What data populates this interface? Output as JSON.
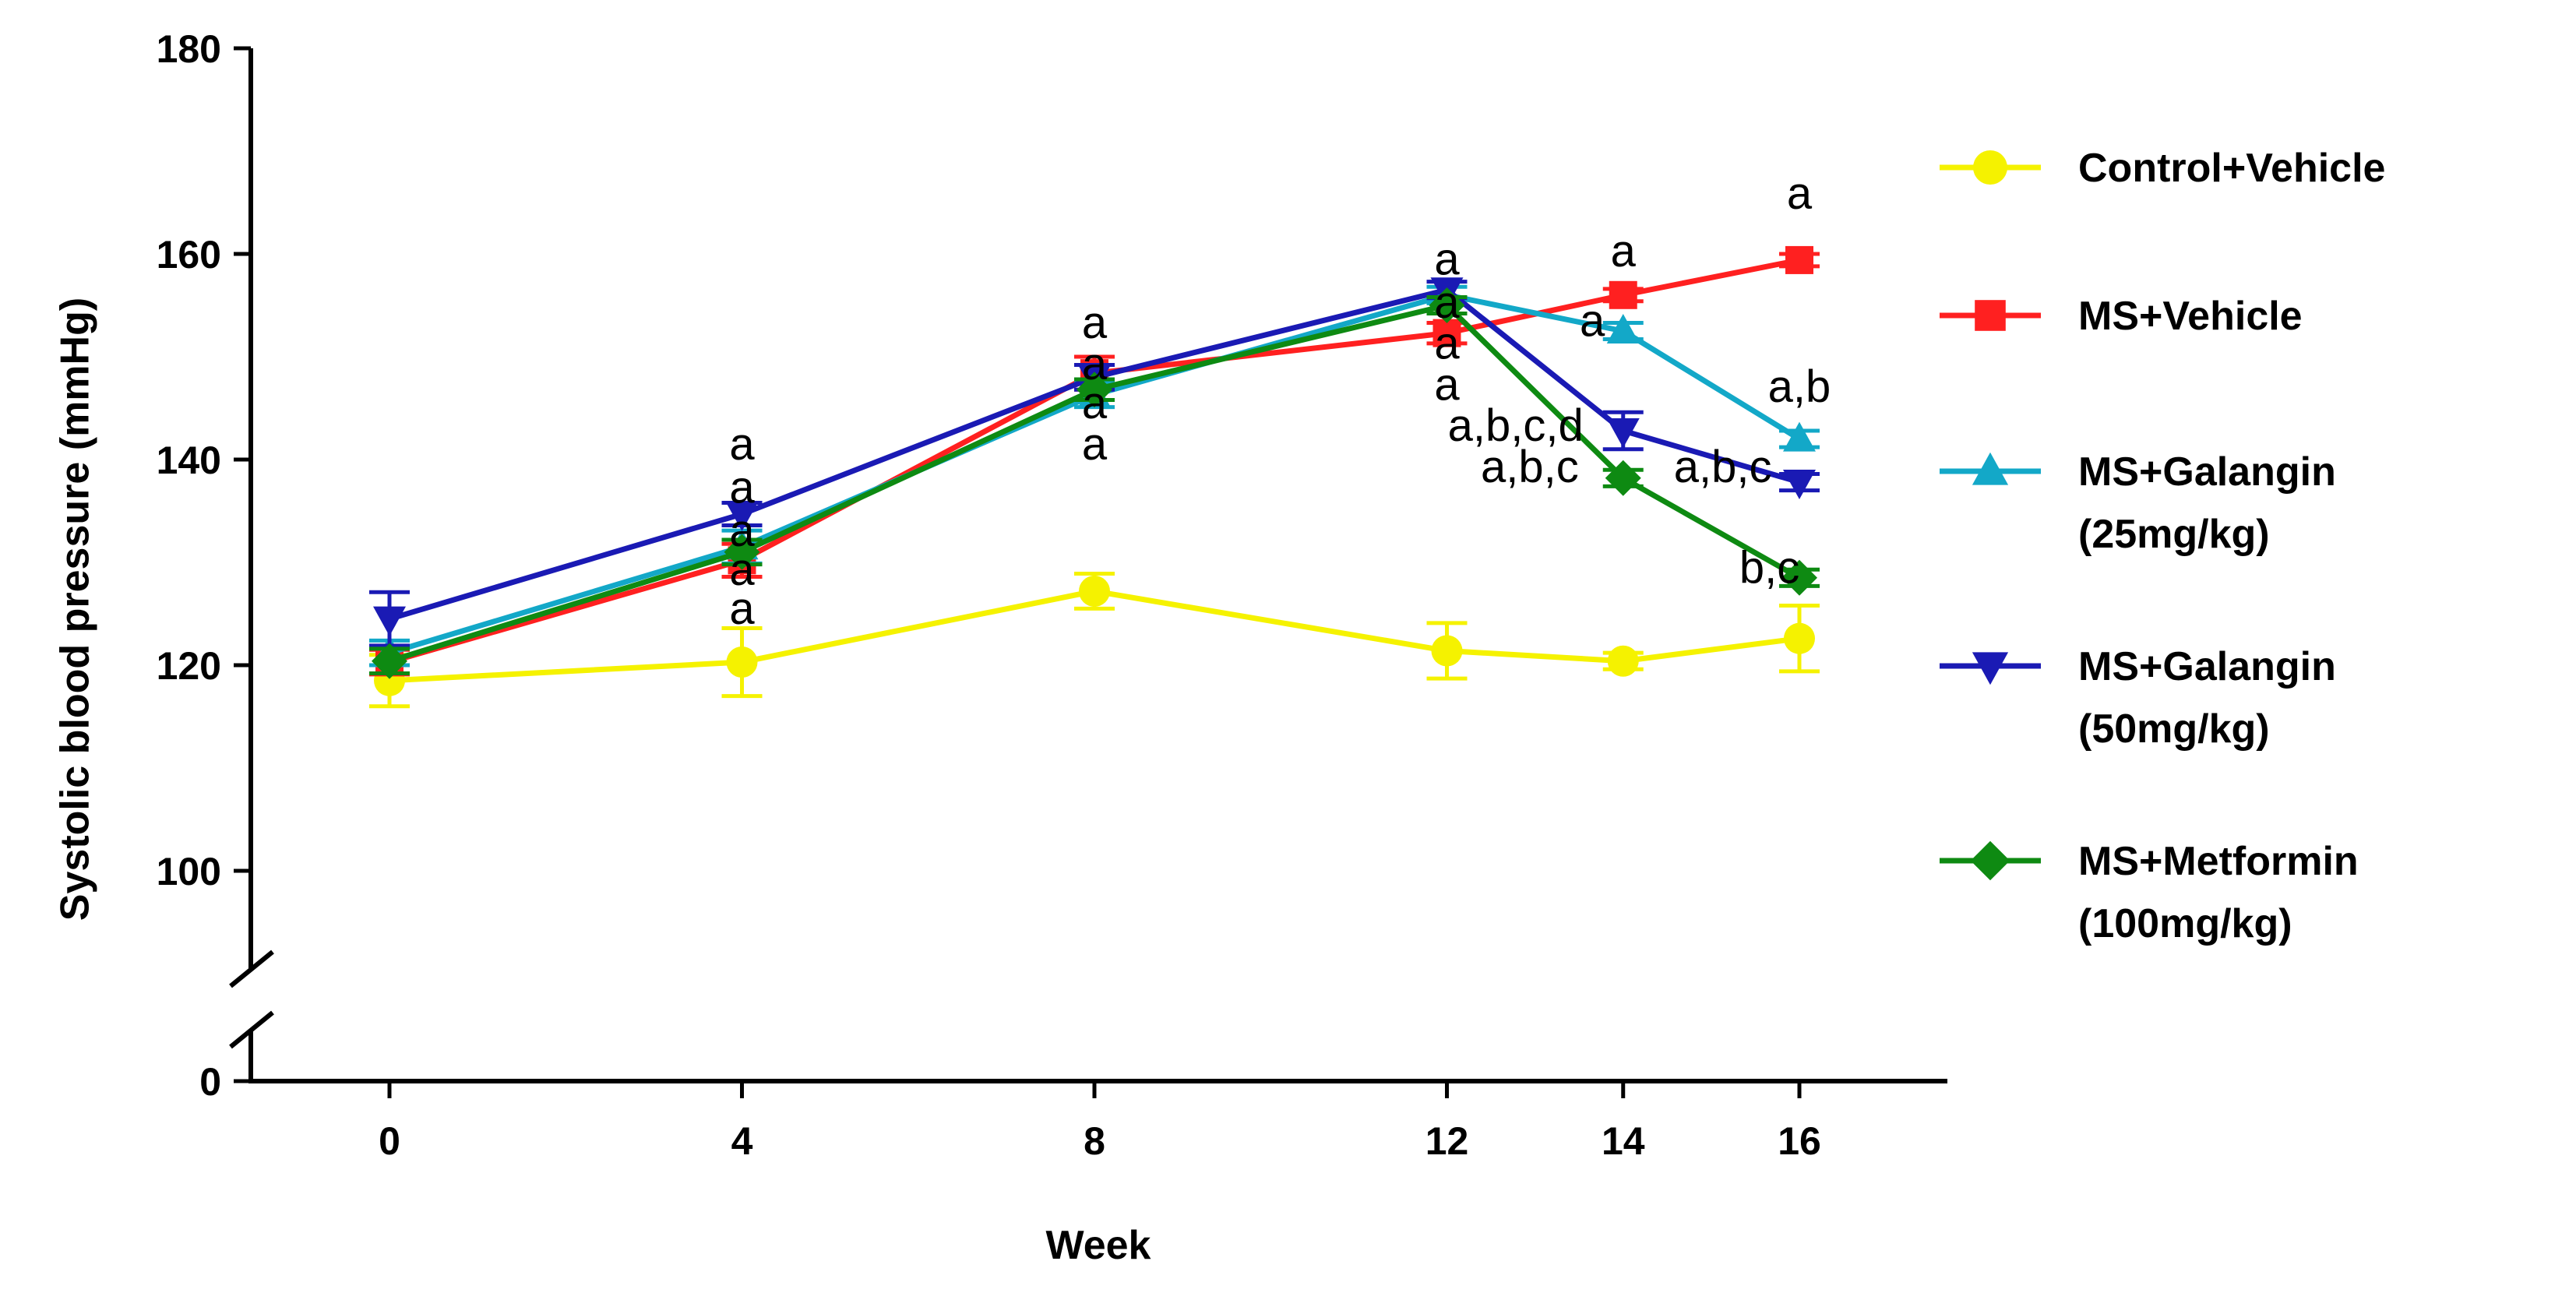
{
  "chart_data": {
    "type": "line",
    "xlabel": "Week",
    "ylabel": "Systolic blood pressure (mmHg)",
    "x": [
      0,
      4,
      8,
      12,
      14,
      16
    ],
    "x_tick_labels": [
      "0",
      "4",
      "8",
      "12",
      "14",
      "16"
    ],
    "y_tick_labels": [
      "0",
      "100",
      "120",
      "140",
      "160",
      "180"
    ],
    "ylim": [
      100,
      180
    ],
    "y_axis_break": true,
    "legend_position": "right",
    "series": [
      {
        "name": "Control+Vehicle",
        "legend_lines": [
          "Control+Vehicle"
        ],
        "color": "#f5f200",
        "marker": "circle",
        "values": [
          118.5,
          120.3,
          127.2,
          121.4,
          120.4,
          122.6
        ],
        "errors": [
          2.5,
          3.3,
          1.7,
          2.7,
          0.8,
          3.2
        ]
      },
      {
        "name": "MS+Vehicle",
        "legend_lines": [
          "MS+Vehicle"
        ],
        "color": "#ff2020",
        "marker": "square",
        "values": [
          120.3,
          130.2,
          148.4,
          152.3,
          156.0,
          159.4
        ],
        "errors": [
          1.2,
          1.6,
          1.6,
          1.0,
          0.6,
          0.6
        ]
      },
      {
        "name": "MS+Galangin (25mg/kg)",
        "legend_lines": [
          "MS+Galangin",
          "(25mg/kg)"
        ],
        "color": "#13a8c8",
        "marker": "triangle-up",
        "values": [
          121.2,
          131.5,
          146.3,
          156.0,
          152.5,
          142.0
        ],
        "errors": [
          1.2,
          1.6,
          1.2,
          0.8,
          0.8,
          0.8
        ]
      },
      {
        "name": "MS+Galangin (50mg/kg)",
        "legend_lines": [
          "MS+Galangin",
          "(50mg/kg)"
        ],
        "color": "#1a1ab4",
        "marker": "triangle-down",
        "values": [
          124.5,
          134.7,
          148.0,
          156.5,
          142.8,
          137.8
        ],
        "errors": [
          2.6,
          1.1,
          1.2,
          0.8,
          1.8,
          0.8
        ]
      },
      {
        "name": "MS+Metformin (100mg/kg)",
        "legend_lines": [
          "MS+Metformin",
          "(100mg/kg)"
        ],
        "color": "#0e8a12",
        "marker": "diamond",
        "values": [
          120.4,
          131.0,
          146.8,
          155.0,
          138.2,
          128.5
        ],
        "errors": [
          1.2,
          1.2,
          1.0,
          0.8,
          0.8,
          0.8
        ]
      }
    ],
    "annotations": [
      {
        "text": "a",
        "x": 4,
        "y": 140.0
      },
      {
        "text": "a",
        "x": 4,
        "y": 135.8
      },
      {
        "text": "a",
        "x": 4,
        "y": 131.6
      },
      {
        "text": "a",
        "x": 4,
        "y": 127.8
      },
      {
        "text": "a",
        "x": 4,
        "y": 124.0
      },
      {
        "text": "a",
        "x": 8,
        "y": 151.8
      },
      {
        "text": "a",
        "x": 8,
        "y": 147.8
      },
      {
        "text": "a",
        "x": 8,
        "y": 144.0
      },
      {
        "text": "a",
        "x": 8,
        "y": 140.0
      },
      {
        "text": "a",
        "x": 12,
        "y": 158.0
      },
      {
        "text": "a",
        "x": 12,
        "y": 153.8
      },
      {
        "text": "a",
        "x": 12,
        "y": 149.8
      },
      {
        "text": "a",
        "x": 12,
        "y": 145.8
      },
      {
        "text": "a,b,c,d",
        "x": 12.78,
        "y": 141.8
      },
      {
        "text": "a,b,c",
        "x": 12.94,
        "y": 137.8
      },
      {
        "text": "a",
        "x": 14,
        "y": 158.8
      },
      {
        "text": "a",
        "x": 13.65,
        "y": 152.0
      },
      {
        "text": "a,b,c",
        "x": 15.13,
        "y": 137.8
      },
      {
        "text": "a",
        "x": 16,
        "y": 164.4
      },
      {
        "text": "a,b",
        "x": 16,
        "y": 145.6
      },
      {
        "text": "b,c",
        "x": 15.66,
        "y": 128.0
      }
    ]
  }
}
